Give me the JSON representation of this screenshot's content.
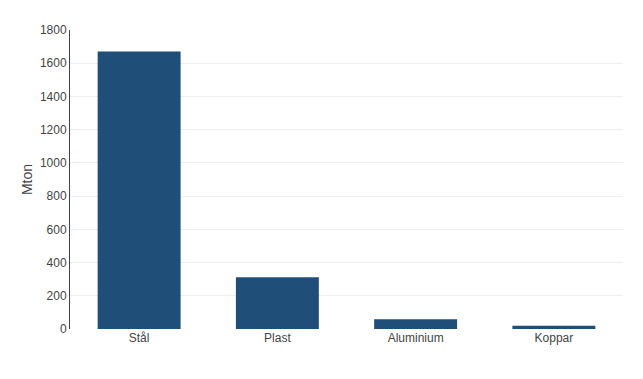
{
  "chart_data": {
    "type": "bar",
    "categories": [
      "Stål",
      "Plast",
      "Aluminium",
      "Koppar"
    ],
    "values": [
      1670,
      311,
      58,
      20
    ],
    "color": "#1F4E79",
    "ylabel": "Mton",
    "ylim": [
      0,
      1800
    ],
    "yticks": [
      0,
      200,
      400,
      600,
      800,
      1000,
      1200,
      1400,
      1600,
      1800
    ],
    "grid": true
  }
}
